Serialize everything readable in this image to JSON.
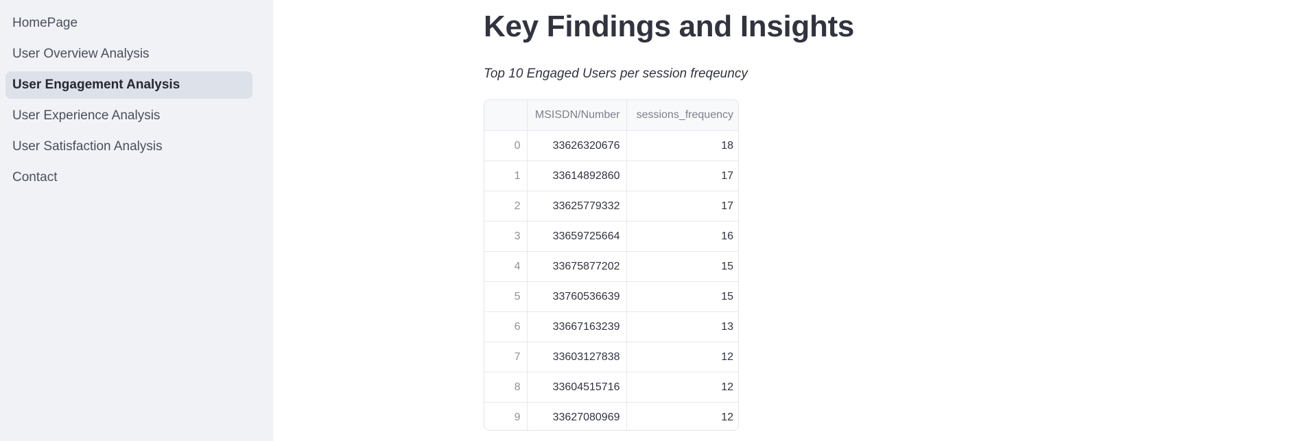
{
  "sidebar": {
    "items": [
      {
        "label": "HomePage",
        "active": false
      },
      {
        "label": "User Overview Analysis",
        "active": false
      },
      {
        "label": "User Engagement Analysis",
        "active": true
      },
      {
        "label": "User Experience Analysis",
        "active": false
      },
      {
        "label": "User Satisfaction Analysis",
        "active": false
      },
      {
        "label": "Contact",
        "active": false
      }
    ]
  },
  "main": {
    "title": "Key Findings and Insights",
    "subtitle": "Top 10 Engaged Users per session freqeuncy",
    "table": {
      "columns": [
        "",
        "MSISDN/Number",
        "sessions_frequency"
      ],
      "rows": [
        [
          "0",
          "33626320676",
          "18"
        ],
        [
          "1",
          "33614892860",
          "17"
        ],
        [
          "2",
          "33625779332",
          "17"
        ],
        [
          "3",
          "33659725664",
          "16"
        ],
        [
          "4",
          "33675877202",
          "15"
        ],
        [
          "5",
          "33760536639",
          "15"
        ],
        [
          "6",
          "33667163239",
          "13"
        ],
        [
          "7",
          "33603127838",
          "12"
        ],
        [
          "8",
          "33604515716",
          "12"
        ],
        [
          "9",
          "33627080969",
          "12"
        ]
      ]
    }
  }
}
